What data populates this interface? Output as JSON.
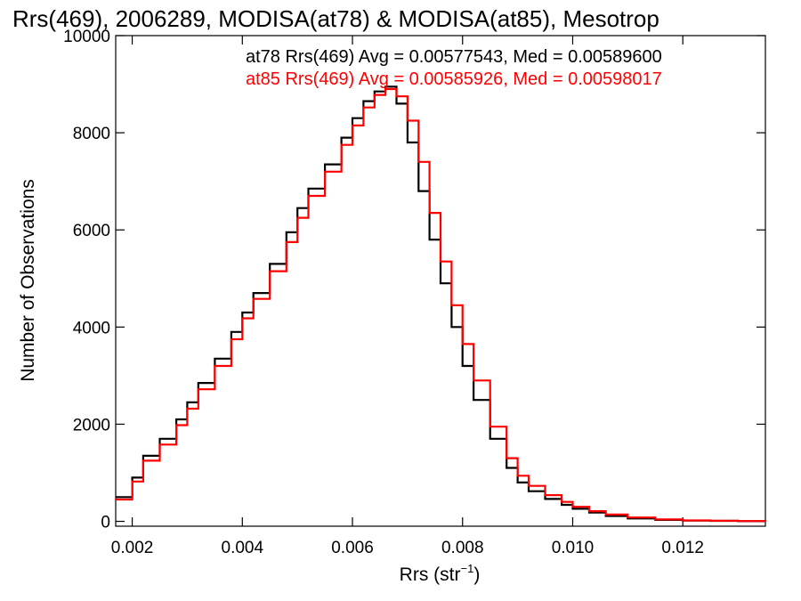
{
  "chart_data": {
    "type": "line",
    "title": "Rrs(469), 2006289, MODISA(at78) & MODISA(at85), Mesotrop",
    "xlabel_main": "Rrs (str",
    "xlabel_sup": "−1",
    "xlabel_close": ")",
    "ylabel": "Number of Observations",
    "xlim": [
      0.0017,
      0.0135
    ],
    "ylim": [
      -100,
      10000
    ],
    "x_ticks": [
      0.002,
      0.004,
      0.006,
      0.008,
      0.01,
      0.012
    ],
    "x_tick_labels": [
      "0.002",
      "0.004",
      "0.006",
      "0.008",
      "0.010",
      "0.012"
    ],
    "y_ticks": [
      0,
      2000,
      4000,
      6000,
      8000,
      10000
    ],
    "y_tick_labels": [
      "0",
      "2000",
      "4000",
      "6000",
      "8000",
      "10000"
    ],
    "legend": [
      {
        "text": "at78 Rrs(469) Avg = 0.00577543, Med = 0.00589600",
        "color": "#000000"
      },
      {
        "text": "at85 Rrs(469) Avg = 0.00585926, Med = 0.00598017",
        "color": "#ff0000"
      }
    ],
    "series": [
      {
        "color": "#000000",
        "x": [
          0.0017,
          0.002,
          0.0022,
          0.0025,
          0.0028,
          0.003,
          0.0032,
          0.0035,
          0.0038,
          0.004,
          0.0042,
          0.0045,
          0.0048,
          0.005,
          0.0052,
          0.0055,
          0.0058,
          0.006,
          0.0062,
          0.0064,
          0.0066,
          0.0068,
          0.007,
          0.0072,
          0.0074,
          0.0076,
          0.0078,
          0.008,
          0.0082,
          0.0085,
          0.0088,
          0.009,
          0.0092,
          0.0095,
          0.0098,
          0.01,
          0.0103,
          0.0106,
          0.011,
          0.0115,
          0.012,
          0.0125,
          0.013,
          0.0135
        ],
        "y": [
          500,
          900,
          1350,
          1700,
          2100,
          2450,
          2850,
          3350,
          3900,
          4300,
          4700,
          5300,
          5950,
          6450,
          6850,
          7350,
          7900,
          8300,
          8650,
          8850,
          8950,
          8600,
          7800,
          6800,
          5800,
          4900,
          4000,
          3200,
          2500,
          1700,
          1100,
          800,
          620,
          460,
          340,
          260,
          180,
          110,
          60,
          30,
          15,
          10,
          5,
          5
        ]
      },
      {
        "color": "#ff0000",
        "x": [
          0.0017,
          0.002,
          0.0022,
          0.0025,
          0.0028,
          0.003,
          0.0032,
          0.0035,
          0.0038,
          0.004,
          0.0042,
          0.0045,
          0.0048,
          0.005,
          0.0052,
          0.0055,
          0.0058,
          0.006,
          0.0062,
          0.0064,
          0.0066,
          0.0068,
          0.007,
          0.0072,
          0.0074,
          0.0076,
          0.0078,
          0.008,
          0.0082,
          0.0085,
          0.0088,
          0.009,
          0.0092,
          0.0095,
          0.0098,
          0.01,
          0.0103,
          0.0106,
          0.011,
          0.0115,
          0.012,
          0.0125,
          0.013,
          0.0135
        ],
        "y": [
          450,
          820,
          1250,
          1580,
          1980,
          2320,
          2720,
          3200,
          3750,
          4180,
          4580,
          5150,
          5750,
          6250,
          6700,
          7200,
          7750,
          8150,
          8520,
          8780,
          8900,
          8750,
          8250,
          7400,
          6350,
          5350,
          4450,
          3650,
          2900,
          1950,
          1300,
          940,
          730,
          540,
          400,
          300,
          210,
          140,
          80,
          40,
          20,
          12,
          6,
          5
        ]
      }
    ]
  }
}
